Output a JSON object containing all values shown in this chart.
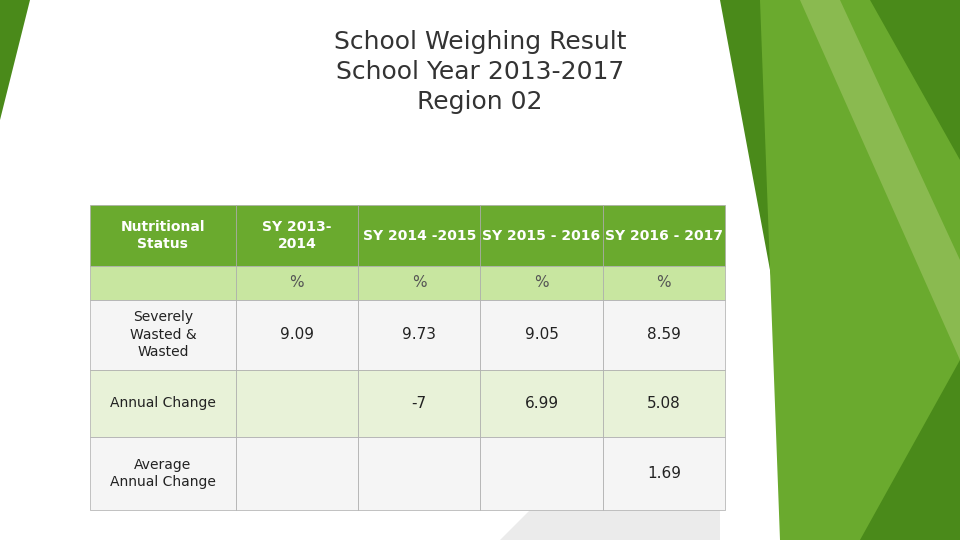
{
  "title_line1": "School Weighing Result",
  "title_line2": "School Year 2013-2017",
  "title_line3": "Region 02",
  "title_fontsize": 18,
  "title_color": "#333333",
  "header_bg_color": "#6aaa2e",
  "header_text_color": "#ffffff",
  "subheader_bg_color": "#c8e6a0",
  "subheader_text_color": "#555555",
  "row_colors": [
    "#f5f5f5",
    "#e8f2d8"
  ],
  "col_headers": [
    "Nutritional\nStatus",
    "SY 2013-\n2014",
    "SY 2014 -2015",
    "SY 2015 - 2016",
    "SY 2016 - 2017"
  ],
  "subheader": [
    "",
    "%",
    "%",
    "%",
    "%"
  ],
  "rows": [
    {
      "label": "Severely\nWasted &\nWasted",
      "values": [
        "9.09",
        "9.73",
        "9.05",
        "8.59"
      ]
    },
    {
      "label": "Annual Change",
      "values": [
        "",
        "-7",
        "6.99",
        "5.08"
      ]
    },
    {
      "label": "Average\nAnnual Change",
      "values": [
        "",
        "",
        "",
        "1.69"
      ]
    }
  ],
  "bg_color": "#ffffff",
  "deco_green_dark": "#4a8a1a",
  "deco_green_mid": "#6aaa2e",
  "deco_green_light": "#8aba50",
  "deco_gray": "#cccccc"
}
